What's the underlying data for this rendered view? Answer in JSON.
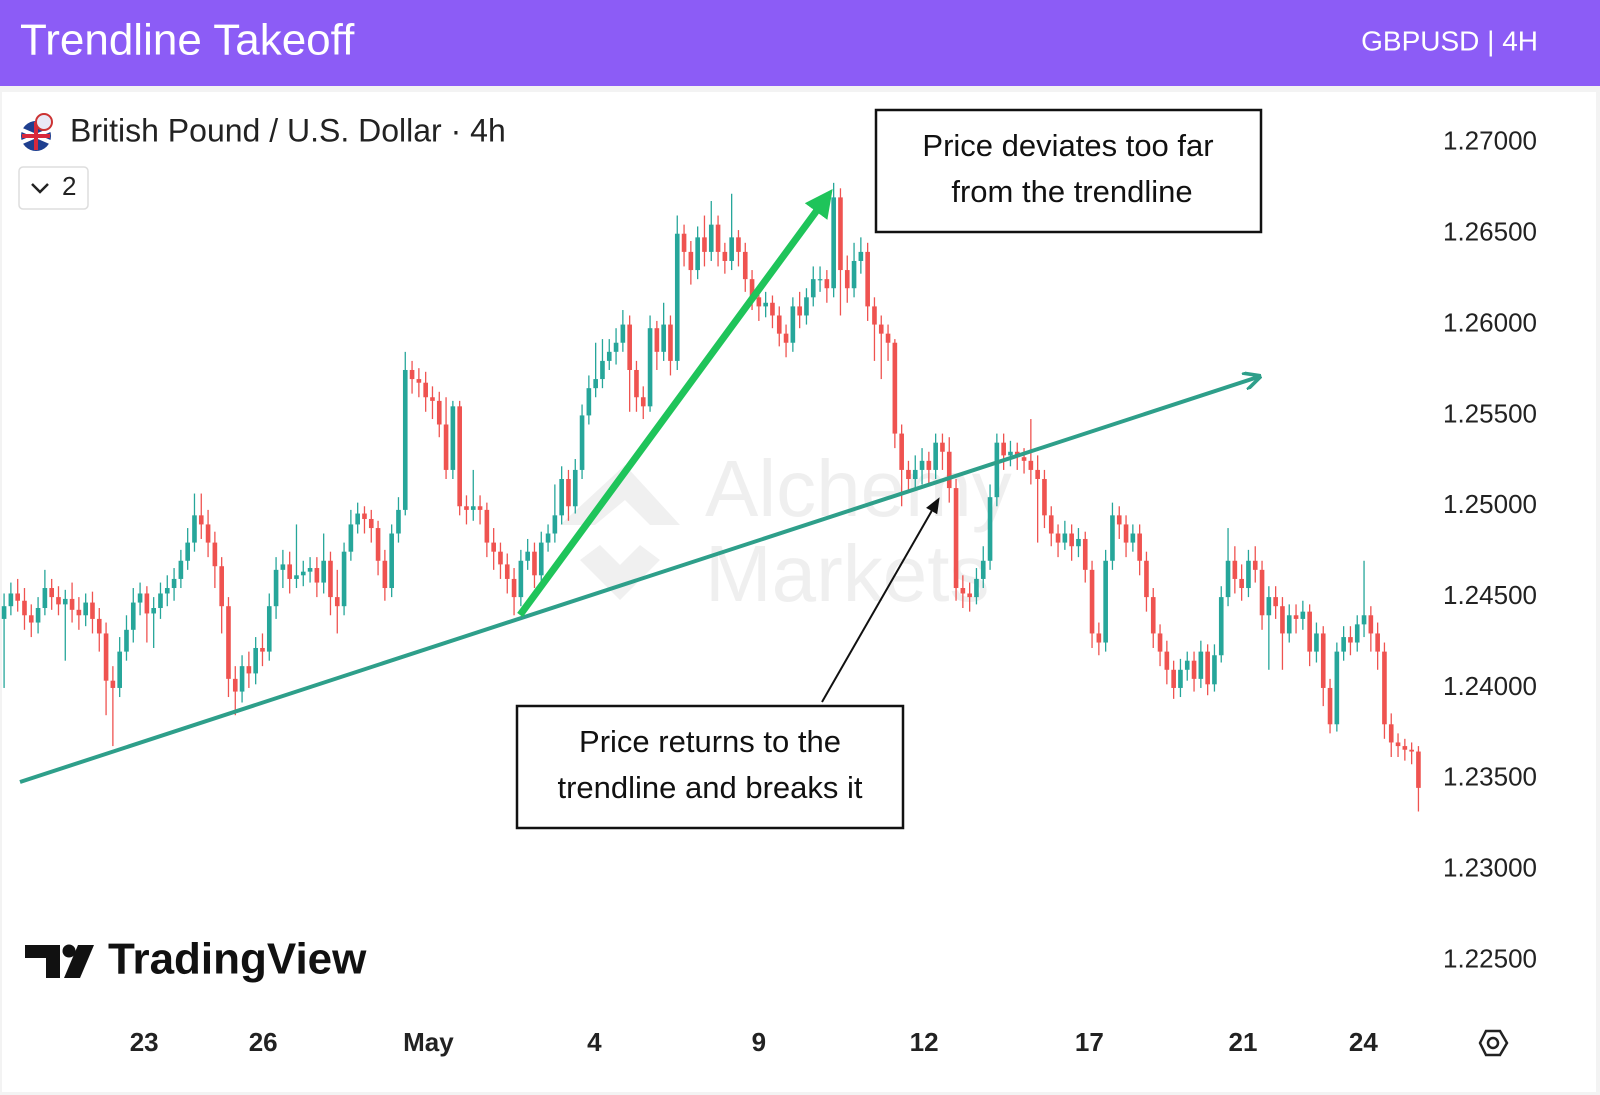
{
  "header": {
    "title": "Trendline Takeoff",
    "subtitle": "GBPUSD | 4H"
  },
  "logo": "TradingView",
  "watermark": [
    "Alchemy",
    "Markets"
  ],
  "indicator_count": 2,
  "annotations": {
    "callout_top": [
      "Price deviates too far",
      "from the trendline"
    ],
    "callout_bottom": [
      "Price returns to the",
      "trendline and breaks it"
    ]
  },
  "chart_data": {
    "type": "candlestick",
    "title": "British Pound / U.S. Dollar · 4h",
    "up_color": "#26a69a",
    "down_color": "#ef5350",
    "xlim": [
      -0.6,
      209.7
    ],
    "xticks": [
      {
        "value": 20.6,
        "label": "23"
      },
      {
        "value": 38.1,
        "label": "26"
      },
      {
        "value": 62.4,
        "label": "May"
      },
      {
        "value": 86.8,
        "label": "4"
      },
      {
        "value": 111,
        "label": "9"
      },
      {
        "value": 135.3,
        "label": "12"
      },
      {
        "value": 159.6,
        "label": "17"
      },
      {
        "value": 182.2,
        "label": "21"
      },
      {
        "value": 199.9,
        "label": "24"
      }
    ],
    "ylim": [
      1.222,
      1.2728
    ],
    "yticks": [
      {
        "value": 1.27,
        "label": "1.27000"
      },
      {
        "value": 1.265,
        "label": "1.26500"
      },
      {
        "value": 1.26,
        "label": "1.26000"
      },
      {
        "value": 1.255,
        "label": "1.25500"
      },
      {
        "value": 1.25,
        "label": "1.25000"
      },
      {
        "value": 1.245,
        "label": "1.24500"
      },
      {
        "value": 1.24,
        "label": "1.24000"
      },
      {
        "value": 1.235,
        "label": "1.23500"
      },
      {
        "value": 1.23,
        "label": "1.23000"
      },
      {
        "value": 1.225,
        "label": "1.22500"
      }
    ],
    "open": [
      1.2438,
      1.2445,
      1.2452,
      1.2448,
      1.244,
      1.2436,
      1.2444,
      1.2455,
      1.245,
      1.2446,
      1.2449,
      1.2443,
      1.244,
      1.2447,
      1.2438,
      1.243,
      1.2404,
      1.24,
      1.242,
      1.2432,
      1.2447,
      1.2452,
      1.2441,
      1.2444,
      1.2452,
      1.2455,
      1.246,
      1.247,
      1.248,
      1.2495,
      1.249,
      1.248,
      1.2467,
      1.2445,
      1.2405,
      1.2398,
      1.2412,
      1.2408,
      1.2422,
      1.242,
      1.2445,
      1.2465,
      1.2468,
      1.246,
      1.2462,
      1.2464,
      1.2466,
      1.2458,
      1.247,
      1.245,
      1.2445,
      1.2475,
      1.249,
      1.2496,
      1.2493,
      1.2488,
      1.247,
      1.2455,
      1.2485,
      1.2498,
      1.2575,
      1.257,
      1.2568,
      1.256,
      1.2558,
      1.2545,
      1.252,
      1.2555,
      1.25,
      1.2498,
      1.25,
      1.2498,
      1.248,
      1.2475,
      1.2468,
      1.246,
      1.245,
      1.247,
      1.2475,
      1.2462,
      1.248,
      1.2485,
      1.2495,
      1.2515,
      1.25,
      1.252,
      1.255,
      1.2565,
      1.257,
      1.258,
      1.2585,
      1.259,
      1.26,
      1.2575,
      1.256,
      1.2555,
      1.2598,
      1.2585,
      1.26,
      1.258,
      1.265,
      1.264,
      1.263,
      1.2648,
      1.264,
      1.2655,
      1.264,
      1.2635,
      1.2648,
      1.264,
      1.2625,
      1.2615,
      1.261,
      1.2612,
      1.2605,
      1.2595,
      1.259,
      1.261,
      1.2605,
      1.2615,
      1.2625,
      1.2625,
      1.262,
      1.267,
      1.263,
      1.262,
      1.2635,
      1.264,
      1.261,
      1.26,
      1.2595,
      1.259,
      1.254,
      1.252,
      1.2515,
      1.252,
      1.2525,
      1.252,
      1.2535,
      1.253,
      1.251,
      1.2455,
      1.2452,
      1.245,
      1.246,
      1.247,
      1.2505,
      1.2535,
      1.2528,
      1.253,
      1.2527,
      1.2525,
      1.252,
      1.2515,
      1.2495,
      1.2485,
      1.248,
      1.2485,
      1.2478,
      1.2482,
      1.2465,
      1.243,
      1.2425,
      1.247,
      1.2495,
      1.249,
      1.248,
      1.2485,
      1.247,
      1.245,
      1.243,
      1.242,
      1.241,
      1.24,
      1.241,
      1.2415,
      1.2405,
      1.242,
      1.2402,
      1.2418,
      1.245,
      1.247,
      1.246,
      1.2455,
      1.247,
      1.2465,
      1.244,
      1.245,
      1.2445,
      1.243,
      1.244,
      1.2438,
      1.2442,
      1.242,
      1.243,
      1.24,
      1.238,
      1.242,
      1.2428,
      1.2425,
      1.2435,
      1.244,
      1.243,
      1.242,
      1.238,
      1.237,
      1.2368,
      1.2366,
      1.2365
    ],
    "high": [
      1.2452,
      1.2458,
      1.246,
      1.2455,
      1.2446,
      1.245,
      1.2465,
      1.246,
      1.2456,
      1.2454,
      1.2458,
      1.245,
      1.2452,
      1.2453,
      1.2444,
      1.2436,
      1.2412,
      1.2428,
      1.244,
      1.2455,
      1.2458,
      1.2456,
      1.245,
      1.2458,
      1.2462,
      1.2466,
      1.2476,
      1.2488,
      1.2507,
      1.2507,
      1.2498,
      1.2486,
      1.2472,
      1.245,
      1.2412,
      1.2418,
      1.242,
      1.2428,
      1.243,
      1.2452,
      1.2472,
      1.2476,
      1.2475,
      1.249,
      1.247,
      1.2472,
      1.2472,
      1.2485,
      1.2475,
      1.2465,
      1.248,
      1.2498,
      1.2502,
      1.25,
      1.2498,
      1.2492,
      1.2476,
      1.249,
      1.2505,
      1.2585,
      1.258,
      1.2576,
      1.2574,
      1.2566,
      1.2563,
      1.256,
      1.2558,
      1.2558,
      1.2506,
      1.252,
      1.2506,
      1.2502,
      1.2488,
      1.248,
      1.2474,
      1.2466,
      1.2476,
      1.2482,
      1.248,
      1.2486,
      1.249,
      1.2512,
      1.2522,
      1.252,
      1.2526,
      1.2556,
      1.2572,
      1.259,
      1.2592,
      1.2592,
      1.2598,
      1.2608,
      1.2605,
      1.258,
      1.2566,
      1.2605,
      1.2602,
      1.2612,
      1.2605,
      1.266,
      1.2655,
      1.2646,
      1.2654,
      1.266,
      1.2668,
      1.266,
      1.2645,
      1.2672,
      1.2652,
      1.2645,
      1.263,
      1.262,
      1.2618,
      1.2616,
      1.261,
      1.26,
      1.2615,
      1.2618,
      1.262,
      1.2632,
      1.2632,
      1.263,
      1.2678,
      1.2675,
      1.2638,
      1.2645,
      1.2648,
      1.2645,
      1.2615,
      1.2605,
      1.26,
      1.2592,
      1.2545,
      1.2525,
      1.2528,
      1.2532,
      1.253,
      1.254,
      1.254,
      1.2538,
      1.2515,
      1.2462,
      1.2458,
      1.2466,
      1.2478,
      1.2512,
      1.254,
      1.254,
      1.2536,
      1.2535,
      1.2532,
      1.2548,
      1.2528,
      1.252,
      1.25,
      1.249,
      1.2492,
      1.249,
      1.2488,
      1.2486,
      1.247,
      1.2436,
      1.2476,
      1.2502,
      1.25,
      1.2495,
      1.249,
      1.249,
      1.2475,
      1.2455,
      1.2435,
      1.2426,
      1.2415,
      1.2416,
      1.242,
      1.242,
      1.2426,
      1.2424,
      1.2424,
      1.2456,
      1.2488,
      1.2478,
      1.2468,
      1.2476,
      1.2478,
      1.247,
      1.2456,
      1.2456,
      1.245,
      1.2446,
      1.2446,
      1.2448,
      1.2446,
      1.2436,
      1.2434,
      1.2405,
      1.2425,
      1.2434,
      1.2434,
      1.244,
      1.247,
      1.2445,
      1.2436,
      1.2425,
      1.2386,
      1.2375,
      1.2372,
      1.237,
      1.2368
    ],
    "low": [
      1.24,
      1.244,
      1.2442,
      1.2432,
      1.2428,
      1.243,
      1.244,
      1.2443,
      1.244,
      1.2415,
      1.2436,
      1.2432,
      1.2434,
      1.243,
      1.242,
      1.2385,
      1.2368,
      1.2395,
      1.2415,
      1.2425,
      1.244,
      1.2425,
      1.2422,
      1.2438,
      1.2445,
      1.2448,
      1.2455,
      1.2465,
      1.2475,
      1.2482,
      1.2472,
      1.2455,
      1.243,
      1.2395,
      1.2385,
      1.2392,
      1.24,
      1.2402,
      1.2412,
      1.2415,
      1.2438,
      1.2455,
      1.2452,
      1.2455,
      1.2456,
      1.2458,
      1.245,
      1.2452,
      1.244,
      1.243,
      1.244,
      1.247,
      1.2485,
      1.2485,
      1.248,
      1.2462,
      1.2448,
      1.245,
      1.248,
      1.2495,
      1.2562,
      1.256,
      1.2552,
      1.2548,
      1.2538,
      1.2515,
      1.2515,
      1.2495,
      1.249,
      1.2492,
      1.249,
      1.2472,
      1.2465,
      1.246,
      1.2452,
      1.244,
      1.2445,
      1.2465,
      1.2455,
      1.2458,
      1.2475,
      1.248,
      1.249,
      1.2492,
      1.2496,
      1.2515,
      1.2545,
      1.256,
      1.2565,
      1.2575,
      1.2578,
      1.2585,
      1.2552,
      1.2552,
      1.2548,
      1.2552,
      1.2575,
      1.258,
      1.2572,
      1.2575,
      1.2632,
      1.2622,
      1.2625,
      1.2632,
      1.2635,
      1.2632,
      1.2628,
      1.263,
      1.2632,
      1.2618,
      1.2608,
      1.2602,
      1.2604,
      1.2598,
      1.2588,
      1.2582,
      1.2585,
      1.2598,
      1.26,
      1.261,
      1.2618,
      1.2612,
      1.2615,
      1.2605,
      1.2612,
      1.2615,
      1.2628,
      1.2602,
      1.258,
      1.257,
      1.258,
      1.2532,
      1.25,
      1.2508,
      1.251,
      1.2512,
      1.2512,
      1.2515,
      1.252,
      1.2502,
      1.2448,
      1.2444,
      1.2442,
      1.2446,
      1.2455,
      1.2465,
      1.25,
      1.252,
      1.2522,
      1.252,
      1.2518,
      1.2512,
      1.248,
      1.2488,
      1.2478,
      1.2472,
      1.2476,
      1.247,
      1.2472,
      1.2458,
      1.2422,
      1.2418,
      1.242,
      1.2465,
      1.2482,
      1.2472,
      1.2475,
      1.2462,
      1.2442,
      1.2422,
      1.2412,
      1.2402,
      1.2394,
      1.2395,
      1.2404,
      1.2398,
      1.24,
      1.2396,
      1.2398,
      1.2414,
      1.2445,
      1.2452,
      1.2448,
      1.245,
      1.2458,
      1.2432,
      1.241,
      1.2438,
      1.241,
      1.2425,
      1.243,
      1.2432,
      1.2412,
      1.2414,
      1.239,
      1.2375,
      1.2376,
      1.2415,
      1.2418,
      1.242,
      1.2428,
      1.242,
      1.241,
      1.2372,
      1.2362,
      1.2362,
      1.236,
      1.2358,
      1.2332
    ],
    "close": [
      1.2445,
      1.2452,
      1.2448,
      1.244,
      1.2436,
      1.2444,
      1.2455,
      1.245,
      1.2446,
      1.2449,
      1.2443,
      1.244,
      1.2447,
      1.2438,
      1.243,
      1.2404,
      1.24,
      1.242,
      1.2432,
      1.2447,
      1.2452,
      1.2441,
      1.2444,
      1.2452,
      1.2455,
      1.246,
      1.247,
      1.248,
      1.2495,
      1.249,
      1.248,
      1.2467,
      1.2445,
      1.2405,
      1.2398,
      1.2412,
      1.2408,
      1.2422,
      1.242,
      1.2445,
      1.2465,
      1.2468,
      1.246,
      1.2462,
      1.2464,
      1.2466,
      1.2458,
      1.247,
      1.245,
      1.2445,
      1.2475,
      1.249,
      1.2496,
      1.2493,
      1.2488,
      1.247,
      1.2455,
      1.2485,
      1.2498,
      1.2575,
      1.257,
      1.2568,
      1.256,
      1.2558,
      1.2545,
      1.252,
      1.2555,
      1.25,
      1.2498,
      1.25,
      1.2498,
      1.248,
      1.2475,
      1.2468,
      1.246,
      1.245,
      1.247,
      1.2475,
      1.2462,
      1.248,
      1.2485,
      1.2495,
      1.2515,
      1.25,
      1.252,
      1.255,
      1.2565,
      1.257,
      1.258,
      1.2585,
      1.259,
      1.26,
      1.2575,
      1.256,
      1.2555,
      1.2598,
      1.2585,
      1.26,
      1.258,
      1.265,
      1.264,
      1.263,
      1.2648,
      1.264,
      1.2655,
      1.264,
      1.2635,
      1.2648,
      1.264,
      1.2625,
      1.2615,
      1.261,
      1.2612,
      1.2605,
      1.2595,
      1.259,
      1.261,
      1.2605,
      1.2615,
      1.2625,
      1.2625,
      1.262,
      1.267,
      1.263,
      1.262,
      1.2635,
      1.264,
      1.261,
      1.26,
      1.2595,
      1.259,
      1.254,
      1.252,
      1.2515,
      1.252,
      1.2525,
      1.252,
      1.2535,
      1.253,
      1.251,
      1.2455,
      1.2452,
      1.245,
      1.246,
      1.247,
      1.2505,
      1.2535,
      1.2528,
      1.253,
      1.2527,
      1.2525,
      1.252,
      1.2515,
      1.2495,
      1.2485,
      1.248,
      1.2485,
      1.2478,
      1.2482,
      1.2465,
      1.243,
      1.2425,
      1.247,
      1.2495,
      1.249,
      1.248,
      1.2485,
      1.247,
      1.245,
      1.243,
      1.242,
      1.241,
      1.24,
      1.241,
      1.2415,
      1.2405,
      1.242,
      1.2402,
      1.2418,
      1.245,
      1.247,
      1.246,
      1.2455,
      1.247,
      1.2465,
      1.244,
      1.245,
      1.2445,
      1.243,
      1.244,
      1.2438,
      1.2442,
      1.242,
      1.243,
      1.24,
      1.238,
      1.242,
      1.2428,
      1.2425,
      1.2435,
      1.244,
      1.243,
      1.242,
      1.238,
      1.237,
      1.2368,
      1.2366,
      1.2365,
      1.2345
    ]
  }
}
